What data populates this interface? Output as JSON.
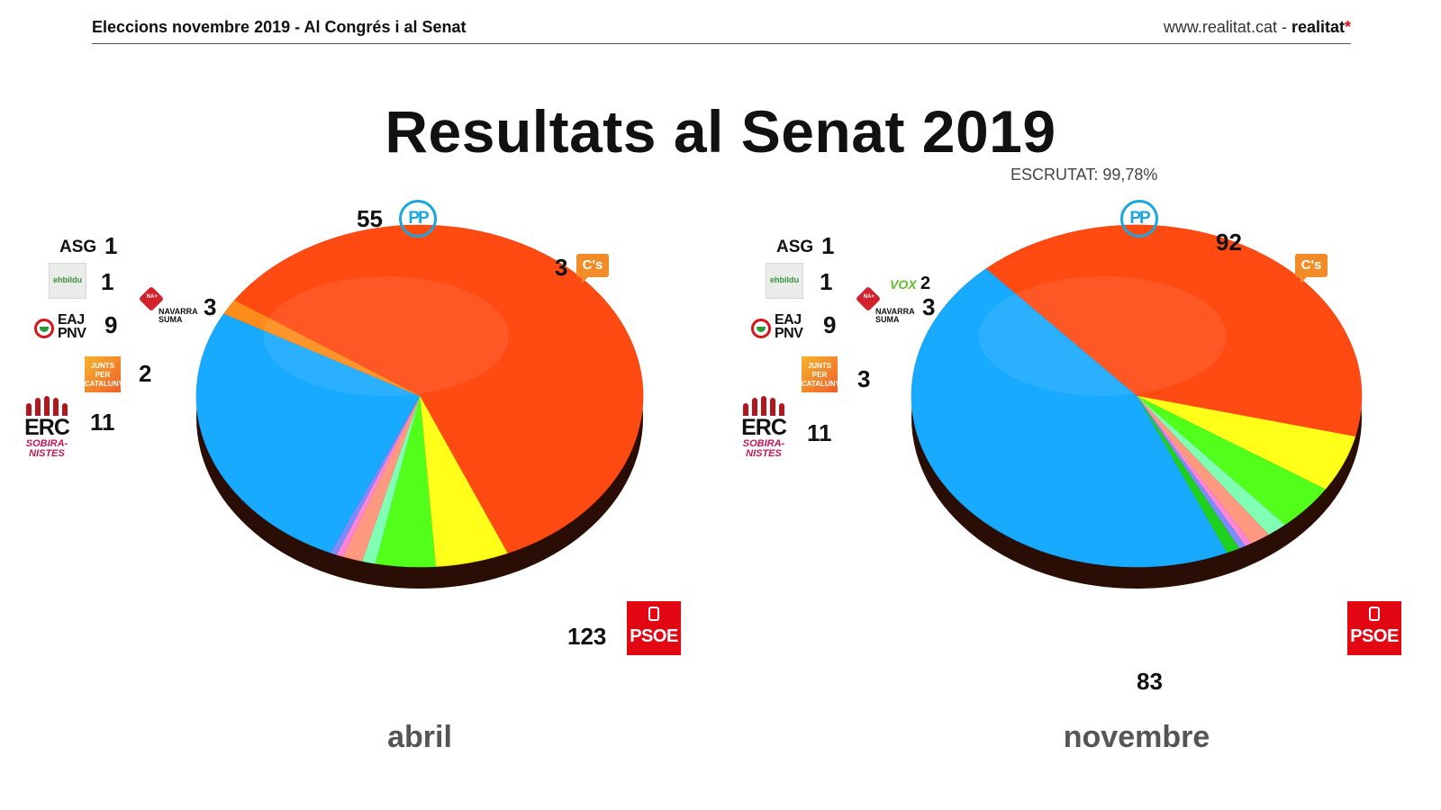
{
  "header": {
    "left": "Eleccions novembre 2019 - Al Congrés i al Senat",
    "site": "www.realitat.cat",
    "separator": " - ",
    "brand": "realitat",
    "brand_star": "*"
  },
  "title": "Resultats al Senat 2019",
  "escrutat": "ESCRUTAT: 99,78%",
  "colors": {
    "PSOE": "#ff4a12",
    "PP": "#18aaff",
    "Cs": "#ff8c1a",
    "ERC": "#ffff1a",
    "EAJ-PNV": "#52ff1a",
    "JxCat": "#80ffb4",
    "Navarra Suma": "#ff9a80",
    "EH Bildu": "#ff85d6",
    "ASG": "#7b8cff",
    "VOX": "#1fd11f"
  },
  "logos": {
    "bildu": "ehbildu",
    "pnv": [
      "EAJ",
      "PNV"
    ],
    "junts": [
      "JUNTS",
      "PER",
      "CATALUNYA"
    ],
    "erc": [
      "ERC",
      "SOBIRA-",
      "NISTES"
    ],
    "navarra_mark": "NA+",
    "navarra": [
      "NAVARRA",
      "SUMA"
    ],
    "pp": "PP",
    "cs": "C's",
    "psoe": "PSOE",
    "vox": "VOX"
  },
  "chart_data": [
    {
      "type": "pie",
      "title": "abril",
      "slices": [
        {
          "party": "PSOE",
          "value": 123
        },
        {
          "party": "ERC",
          "value": 11
        },
        {
          "party": "EAJ-PNV",
          "value": 9
        },
        {
          "party": "JxCat",
          "value": 2
        },
        {
          "party": "Navarra Suma",
          "value": 3
        },
        {
          "party": "EH Bildu",
          "value": 1
        },
        {
          "party": "ASG",
          "value": 1
        },
        {
          "party": "PP",
          "value": 55
        },
        {
          "party": "Cs",
          "value": 3
        }
      ],
      "labels": {
        "ASG": "ASG",
        "ASG_value": "1",
        "EH Bildu": "1",
        "EAJ-PNV": "9",
        "JxCat": "2",
        "ERC": "11",
        "Navarra Suma": "3",
        "PP": "55",
        "Cs": "3",
        "PSOE": "123"
      }
    },
    {
      "type": "pie",
      "title": "novembre",
      "slices": [
        {
          "party": "PSOE",
          "value": 83
        },
        {
          "party": "ERC",
          "value": 11
        },
        {
          "party": "EAJ-PNV",
          "value": 9
        },
        {
          "party": "JxCat",
          "value": 3
        },
        {
          "party": "Navarra Suma",
          "value": 3
        },
        {
          "party": "EH Bildu",
          "value": 1
        },
        {
          "party": "ASG",
          "value": 1
        },
        {
          "party": "VOX",
          "value": 2
        },
        {
          "party": "PP",
          "value": 92
        }
      ],
      "labels": {
        "ASG": "ASG",
        "ASG_value": "1",
        "EH Bildu": "1",
        "VOX": "2",
        "Navarra Suma": "3",
        "EAJ-PNV": "9",
        "JxCat": "3",
        "ERC": "11",
        "PP": "92",
        "PSOE": "83"
      }
    }
  ]
}
